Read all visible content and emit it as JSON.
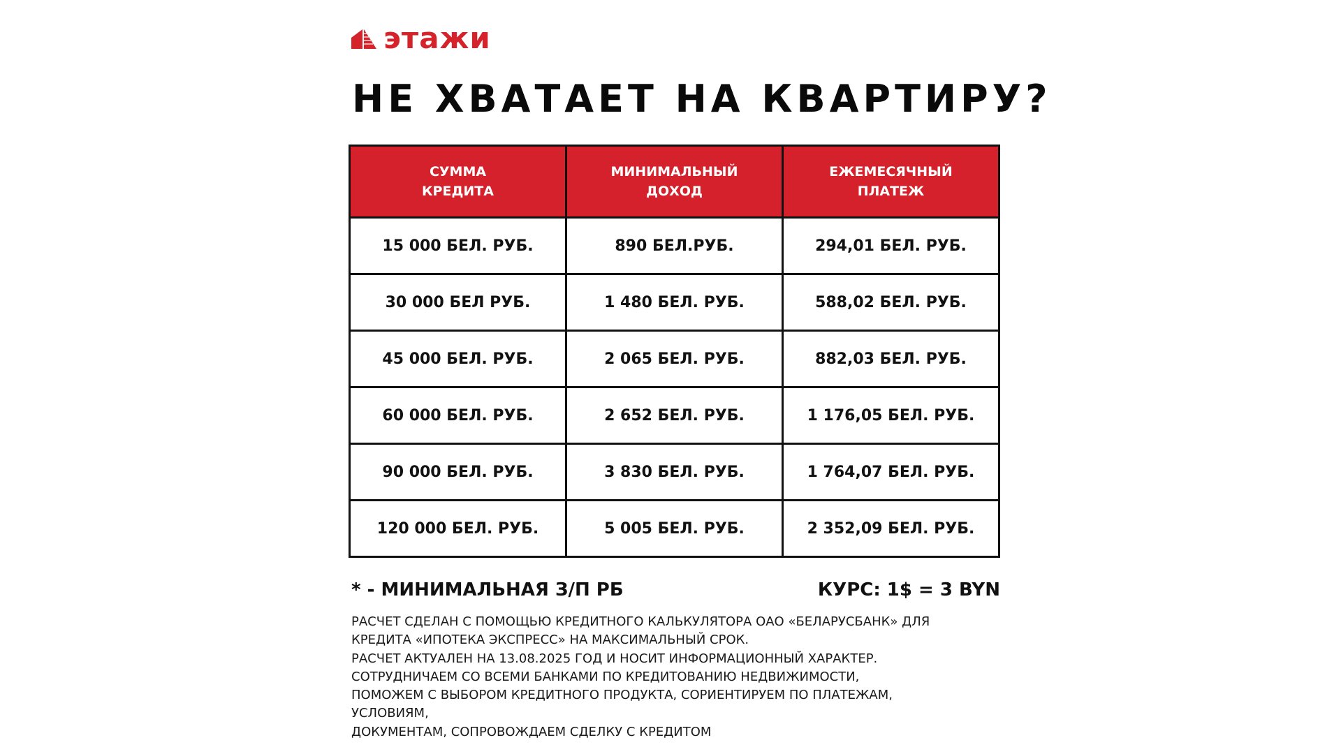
{
  "brand": {
    "name": "этажи",
    "color": "#d4232a",
    "icon": "building-logo-icon"
  },
  "title": "НЕ ХВАТАЕТ НА КВАРТИРУ?",
  "table": {
    "header_color": "#d4212b",
    "headers": [
      [
        "СУММА",
        "КРЕДИТА"
      ],
      [
        "МИНИМАЛЬНЫЙ",
        "ДОХОД"
      ],
      [
        "ЕЖЕМЕСЯЧНЫЙ",
        "ПЛАТЕЖ"
      ]
    ],
    "rows": [
      [
        "15 000 БЕЛ. РУБ.",
        "890 БЕЛ.РУБ.",
        "294,01 БЕЛ. РУБ."
      ],
      [
        "30 000 БЕЛ РУБ.",
        "1 480 БЕЛ. РУБ.",
        "588,02 БЕЛ. РУБ."
      ],
      [
        "45 000 БЕЛ. РУБ.",
        "2 065 БЕЛ. РУБ.",
        "882,03 БЕЛ. РУБ."
      ],
      [
        "60 000 БЕЛ. РУБ.",
        "2 652 БЕЛ. РУБ.",
        "1 176,05 БЕЛ. РУБ."
      ],
      [
        "90 000 БЕЛ. РУБ.",
        "3 830 БЕЛ. РУБ.",
        "1 764,07 БЕЛ. РУБ."
      ],
      [
        "120 000 БЕЛ. РУБ.",
        "5 005 БЕЛ. РУБ.",
        "2 352,09 БЕЛ. РУБ."
      ]
    ]
  },
  "footnote": "* - МИНИМАЛЬНАЯ З/П РБ",
  "rate": "КУРС: 1$ = 3 BYN",
  "notes": [
    "РАСЧЕТ СДЕЛАН С ПОМОЩЬЮ КРЕДИТНОГО КАЛЬКУЛЯТОРА ОАО «БЕЛАРУСБАНК» ДЛЯ",
    "КРЕДИТА «ИПОТЕКА ЭКСПРЕСС» НА МАКСИМАЛЬНЫЙ СРОК.",
    "РАСЧЕТ АКТУАЛЕН НА 13.08.2025 ГОД И НОСИТ ИНФОРМАЦИОННЫЙ ХАРАКТЕР.",
    "СОТРУДНИЧАЕМ СО ВСЕМИ БАНКАМИ ПО КРЕДИТОВАНИЮ НЕДВИЖИМОСТИ,",
    "ПОМОЖЕМ С ВЫБОРОМ КРЕДИТНОГО ПРОДУКТА, СОРИЕНТИРУЕМ ПО ПЛАТЕЖАМ,",
    "УСЛОВИЯМ,",
    "ДОКУМЕНТАМ, СОПРОВОЖДАЕМ СДЕЛКУ С КРЕДИТОМ"
  ]
}
